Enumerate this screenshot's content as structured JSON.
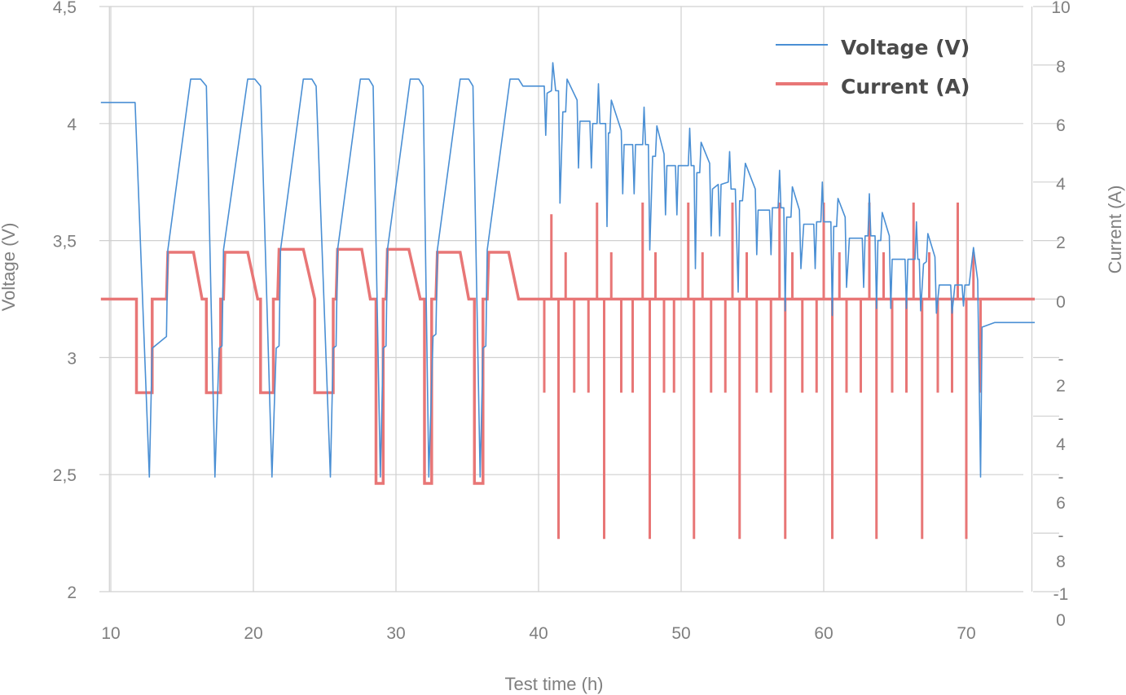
{
  "chart_data": {
    "type": "line",
    "xlabel": "Test time (h)",
    "ylabel_left": "Voltage (V)",
    "ylabel_right": "Current (A)",
    "xlim": [
      9.2,
      74.8
    ],
    "ylim_left": [
      2,
      4.5
    ],
    "ylim_right": [
      -10,
      10
    ],
    "x_ticks": [
      "10",
      "20",
      "30",
      "40",
      "50",
      "60",
      "70"
    ],
    "y_left_ticks": [
      "4,5",
      "4",
      "3,5",
      "3",
      "2,5",
      "2"
    ],
    "y_right_tick_labels": [
      "10",
      "8",
      "6",
      "4",
      "2",
      "0",
      "-",
      "2",
      "-",
      "4",
      "-",
      "6",
      "-",
      "8",
      "-1",
      "0"
    ],
    "grid": true,
    "legend_position": "top-right",
    "colors": {
      "voltage": "#4a8fd4",
      "current": "#e87676",
      "grid": "#d0d0d0",
      "text": "#7f7f7f"
    },
    "series": [
      {
        "name": "Voltage (V)",
        "axis": "left",
        "points": [
          [
            9.3,
            4.09
          ],
          [
            11.7,
            4.09
          ],
          [
            12.7,
            2.49
          ],
          [
            12.9,
            3.04
          ],
          [
            13.9,
            3.09
          ],
          [
            14.0,
            3.46
          ],
          [
            15.6,
            4.19
          ],
          [
            16.3,
            4.19
          ],
          [
            16.7,
            4.16
          ],
          [
            17.3,
            2.49
          ],
          [
            17.6,
            3.04
          ],
          [
            17.8,
            3.05
          ],
          [
            17.9,
            3.46
          ],
          [
            19.6,
            4.19
          ],
          [
            20.1,
            4.19
          ],
          [
            20.5,
            4.16
          ],
          [
            21.3,
            2.49
          ],
          [
            21.6,
            3.04
          ],
          [
            21.8,
            3.05
          ],
          [
            21.9,
            3.46
          ],
          [
            23.5,
            4.19
          ],
          [
            24.1,
            4.19
          ],
          [
            24.4,
            4.16
          ],
          [
            25.4,
            2.49
          ],
          [
            25.6,
            3.04
          ],
          [
            25.8,
            3.05
          ],
          [
            25.9,
            3.46
          ],
          [
            27.5,
            4.19
          ],
          [
            28.1,
            4.19
          ],
          [
            28.4,
            4.16
          ],
          [
            28.9,
            2.49
          ],
          [
            29.1,
            3.04
          ],
          [
            29.3,
            3.05
          ],
          [
            29.4,
            3.46
          ],
          [
            31.0,
            4.19
          ],
          [
            31.6,
            4.19
          ],
          [
            31.9,
            4.16
          ],
          [
            32.3,
            2.49
          ],
          [
            32.6,
            3.09
          ],
          [
            32.8,
            3.1
          ],
          [
            32.9,
            3.46
          ],
          [
            34.5,
            4.19
          ],
          [
            35.1,
            4.19
          ],
          [
            35.4,
            4.16
          ],
          [
            35.9,
            2.49
          ],
          [
            36.1,
            3.04
          ],
          [
            36.3,
            3.05
          ],
          [
            36.4,
            3.46
          ],
          [
            38.0,
            4.19
          ],
          [
            38.6,
            4.19
          ],
          [
            38.9,
            4.16
          ],
          [
            40.4,
            4.16
          ],
          [
            40.5,
            3.95
          ],
          [
            40.6,
            4.13
          ],
          [
            40.9,
            4.14
          ],
          [
            41.0,
            4.26
          ],
          [
            41.2,
            4.14
          ],
          [
            41.4,
            4.14
          ],
          [
            41.5,
            3.66
          ],
          [
            41.7,
            4.05
          ],
          [
            41.9,
            4.05
          ],
          [
            42.0,
            4.19
          ],
          [
            42.7,
            4.1
          ],
          [
            42.8,
            3.81
          ],
          [
            42.9,
            4.01
          ],
          [
            43.6,
            4.01
          ],
          [
            43.7,
            3.81
          ],
          [
            43.8,
            4.0
          ],
          [
            44.1,
            4.0
          ],
          [
            44.2,
            4.17
          ],
          [
            44.3,
            4.0
          ],
          [
            44.7,
            4.0
          ],
          [
            44.8,
            3.56
          ],
          [
            44.9,
            3.96
          ],
          [
            45.0,
            3.96
          ],
          [
            45.1,
            4.1
          ],
          [
            45.8,
            3.97
          ],
          [
            45.9,
            3.7
          ],
          [
            46.0,
            3.91
          ],
          [
            46.6,
            3.91
          ],
          [
            46.7,
            3.7
          ],
          [
            46.8,
            3.91
          ],
          [
            47.3,
            3.91
          ],
          [
            47.4,
            4.07
          ],
          [
            47.5,
            3.91
          ],
          [
            47.7,
            3.91
          ],
          [
            47.8,
            3.46
          ],
          [
            48.0,
            3.86
          ],
          [
            48.2,
            3.86
          ],
          [
            48.3,
            3.99
          ],
          [
            48.8,
            3.87
          ],
          [
            48.9,
            3.61
          ],
          [
            49.0,
            3.82
          ],
          [
            49.6,
            3.82
          ],
          [
            49.7,
            3.61
          ],
          [
            49.8,
            3.82
          ],
          [
            50.5,
            3.82
          ],
          [
            50.6,
            3.98
          ],
          [
            50.7,
            3.82
          ],
          [
            50.9,
            3.82
          ],
          [
            51.0,
            3.38
          ],
          [
            51.1,
            3.79
          ],
          [
            51.3,
            3.79
          ],
          [
            51.4,
            3.92
          ],
          [
            52.0,
            3.83
          ],
          [
            52.1,
            3.52
          ],
          [
            52.2,
            3.72
          ],
          [
            52.6,
            3.74
          ],
          [
            52.7,
            3.52
          ],
          [
            52.8,
            3.74
          ],
          [
            53.3,
            3.75
          ],
          [
            53.4,
            3.88
          ],
          [
            53.5,
            3.72
          ],
          [
            53.8,
            3.72
          ],
          [
            54.0,
            3.28
          ],
          [
            54.1,
            3.67
          ],
          [
            54.3,
            3.67
          ],
          [
            54.5,
            3.83
          ],
          [
            55.2,
            3.72
          ],
          [
            55.3,
            3.44
          ],
          [
            55.4,
            3.63
          ],
          [
            56.2,
            3.63
          ],
          [
            56.3,
            3.44
          ],
          [
            56.4,
            3.64
          ],
          [
            56.8,
            3.64
          ],
          [
            56.9,
            3.8
          ],
          [
            57.0,
            3.64
          ],
          [
            57.2,
            3.64
          ],
          [
            57.3,
            3.2
          ],
          [
            57.4,
            3.6
          ],
          [
            57.7,
            3.6
          ],
          [
            57.8,
            3.73
          ],
          [
            58.3,
            3.63
          ],
          [
            58.4,
            3.38
          ],
          [
            58.6,
            3.57
          ],
          [
            59.3,
            3.57
          ],
          [
            59.4,
            3.38
          ],
          [
            59.5,
            3.58
          ],
          [
            59.8,
            3.58
          ],
          [
            59.9,
            3.75
          ],
          [
            60.0,
            3.58
          ],
          [
            60.5,
            3.58
          ],
          [
            60.6,
            3.18
          ],
          [
            60.7,
            3.56
          ],
          [
            60.9,
            3.56
          ],
          [
            61.0,
            3.68
          ],
          [
            61.5,
            3.6
          ],
          [
            61.6,
            3.3
          ],
          [
            61.8,
            3.51
          ],
          [
            62.7,
            3.51
          ],
          [
            62.8,
            3.3
          ],
          [
            62.9,
            3.52
          ],
          [
            63.1,
            3.52
          ],
          [
            63.2,
            3.7
          ],
          [
            63.3,
            3.52
          ],
          [
            63.6,
            3.52
          ],
          [
            63.7,
            3.21
          ],
          [
            63.8,
            3.5
          ],
          [
            64.0,
            3.5
          ],
          [
            64.1,
            3.62
          ],
          [
            64.6,
            3.52
          ],
          [
            64.7,
            3.21
          ],
          [
            64.8,
            3.42
          ],
          [
            65.7,
            3.42
          ],
          [
            65.8,
            3.21
          ],
          [
            65.9,
            3.42
          ],
          [
            66.4,
            3.42
          ],
          [
            66.5,
            3.58
          ],
          [
            66.6,
            3.42
          ],
          [
            66.7,
            3.42
          ],
          [
            66.8,
            3.2
          ],
          [
            67.0,
            3.4
          ],
          [
            67.2,
            3.41
          ],
          [
            67.3,
            3.53
          ],
          [
            67.8,
            3.43
          ],
          [
            67.9,
            3.19
          ],
          [
            68.1,
            3.31
          ],
          [
            68.9,
            3.31
          ],
          [
            69.0,
            3.19
          ],
          [
            69.2,
            3.31
          ],
          [
            69.7,
            3.31
          ],
          [
            69.8,
            3.22
          ],
          [
            69.9,
            3.31
          ],
          [
            70.2,
            3.31
          ],
          [
            70.5,
            3.47
          ],
          [
            70.8,
            3.33
          ],
          [
            71.0,
            2.49
          ],
          [
            71.1,
            3.13
          ],
          [
            72.0,
            3.15
          ],
          [
            74.8,
            3.15
          ]
        ]
      },
      {
        "name": "Current (A)",
        "axis": "right",
        "points": [
          [
            9.3,
            0
          ],
          [
            11.8,
            0
          ],
          [
            11.8,
            -3.2
          ],
          [
            12.9,
            -3.2
          ],
          [
            12.9,
            0
          ],
          [
            13.9,
            0
          ],
          [
            14.0,
            1.6
          ],
          [
            15.8,
            1.6
          ],
          [
            16.4,
            0
          ],
          [
            16.7,
            0
          ],
          [
            16.7,
            -3.2
          ],
          [
            17.7,
            -3.2
          ],
          [
            17.7,
            0
          ],
          [
            17.9,
            0
          ],
          [
            18.0,
            1.6
          ],
          [
            19.6,
            1.6
          ],
          [
            20.3,
            0
          ],
          [
            20.5,
            0
          ],
          [
            20.5,
            -3.2
          ],
          [
            21.4,
            -3.2
          ],
          [
            21.4,
            0
          ],
          [
            21.7,
            0
          ],
          [
            21.8,
            1.7
          ],
          [
            23.5,
            1.7
          ],
          [
            24.3,
            0
          ],
          [
            24.3,
            -3.2
          ],
          [
            25.6,
            -3.2
          ],
          [
            25.6,
            0
          ],
          [
            25.8,
            0
          ],
          [
            25.9,
            1.7
          ],
          [
            27.6,
            1.7
          ],
          [
            28.2,
            0
          ],
          [
            28.6,
            0
          ],
          [
            28.6,
            -6.3
          ],
          [
            29.1,
            -6.3
          ],
          [
            29.1,
            0
          ],
          [
            29.3,
            0
          ],
          [
            29.4,
            1.7
          ],
          [
            30.9,
            1.7
          ],
          [
            31.7,
            0
          ],
          [
            32.0,
            0
          ],
          [
            32.0,
            -6.3
          ],
          [
            32.5,
            -6.3
          ],
          [
            32.5,
            0
          ],
          [
            32.8,
            0
          ],
          [
            32.9,
            1.6
          ],
          [
            34.5,
            1.6
          ],
          [
            35.1,
            0
          ],
          [
            35.5,
            0
          ],
          [
            35.5,
            -6.3
          ],
          [
            36.1,
            -6.3
          ],
          [
            36.1,
            0
          ],
          [
            36.4,
            0
          ],
          [
            36.5,
            1.6
          ],
          [
            37.9,
            1.6
          ],
          [
            38.6,
            0
          ],
          [
            74.8,
            0
          ]
        ],
        "pulses": [
          [
            40.4,
            -3.2
          ],
          [
            40.9,
            2.9
          ],
          [
            41.4,
            -8.2
          ],
          [
            41.9,
            1.6
          ],
          [
            42.5,
            -3.2
          ],
          [
            43.5,
            -3.2
          ],
          [
            44.1,
            3.3
          ],
          [
            44.6,
            -8.2
          ],
          [
            45.1,
            1.6
          ],
          [
            45.8,
            -3.2
          ],
          [
            46.6,
            -3.2
          ],
          [
            47.3,
            3.3
          ],
          [
            47.8,
            -8.2
          ],
          [
            48.2,
            1.6
          ],
          [
            48.8,
            -3.2
          ],
          [
            49.5,
            -3.2
          ],
          [
            50.5,
            3.3
          ],
          [
            50.9,
            -8.2
          ],
          [
            51.5,
            1.6
          ],
          [
            52.1,
            -3.2
          ],
          [
            53.1,
            -3.2
          ],
          [
            53.6,
            3.3
          ],
          [
            54.1,
            -8.2
          ],
          [
            54.6,
            1.6
          ],
          [
            55.3,
            -3.2
          ],
          [
            56.3,
            -3.2
          ],
          [
            56.9,
            3.3
          ],
          [
            57.3,
            -8.2
          ],
          [
            57.8,
            1.6
          ],
          [
            58.5,
            -3.2
          ],
          [
            59.5,
            -3.2
          ],
          [
            60.0,
            3.3
          ],
          [
            60.6,
            -8.2
          ],
          [
            61.1,
            1.6
          ],
          [
            61.6,
            -3.2
          ],
          [
            62.6,
            -3.2
          ],
          [
            63.2,
            3.3
          ],
          [
            63.7,
            -8.2
          ],
          [
            64.2,
            1.6
          ],
          [
            64.8,
            -3.2
          ],
          [
            65.8,
            -3.2
          ],
          [
            66.3,
            3.3
          ],
          [
            66.9,
            -8.2
          ],
          [
            67.4,
            1.6
          ],
          [
            68.0,
            -3.2
          ],
          [
            69.0,
            -3.2
          ],
          [
            69.4,
            3.3
          ],
          [
            70.0,
            -8.2
          ],
          [
            70.5,
            1.6
          ],
          [
            71.0,
            -3.2
          ]
        ]
      }
    ]
  }
}
